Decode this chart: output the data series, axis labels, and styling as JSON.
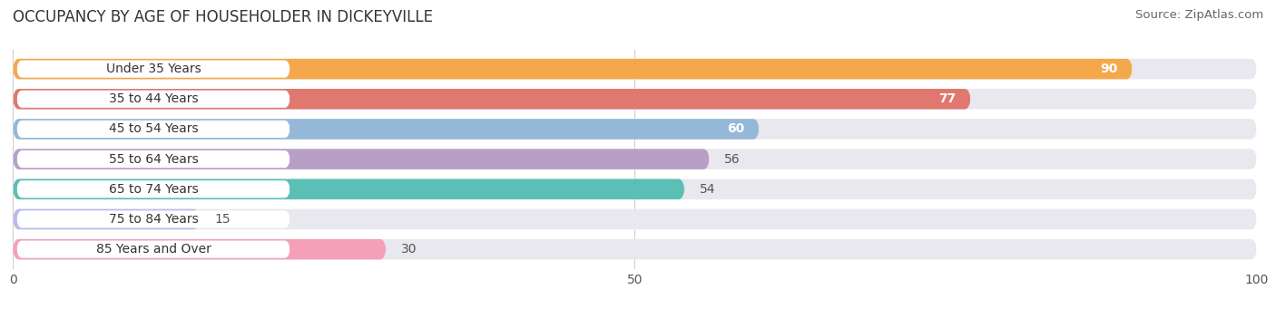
{
  "title": "OCCUPANCY BY AGE OF HOUSEHOLDER IN DICKEYVILLE",
  "source": "Source: ZipAtlas.com",
  "categories": [
    "Under 35 Years",
    "35 to 44 Years",
    "45 to 54 Years",
    "55 to 64 Years",
    "65 to 74 Years",
    "75 to 84 Years",
    "85 Years and Over"
  ],
  "values": [
    90,
    77,
    60,
    56,
    54,
    15,
    30
  ],
  "bar_colors": [
    "#F5A84B",
    "#E07870",
    "#96B8D8",
    "#B89FC8",
    "#5BBFB5",
    "#B8BCEA",
    "#F5A0B8"
  ],
  "xlim": [
    0,
    100
  ],
  "label_inside_threshold": 57,
  "background_color": "#ffffff",
  "bar_bg_color": "#e8e8ee",
  "title_fontsize": 12,
  "source_fontsize": 9.5,
  "tick_fontsize": 10,
  "label_fontsize": 10,
  "cat_fontsize": 10
}
